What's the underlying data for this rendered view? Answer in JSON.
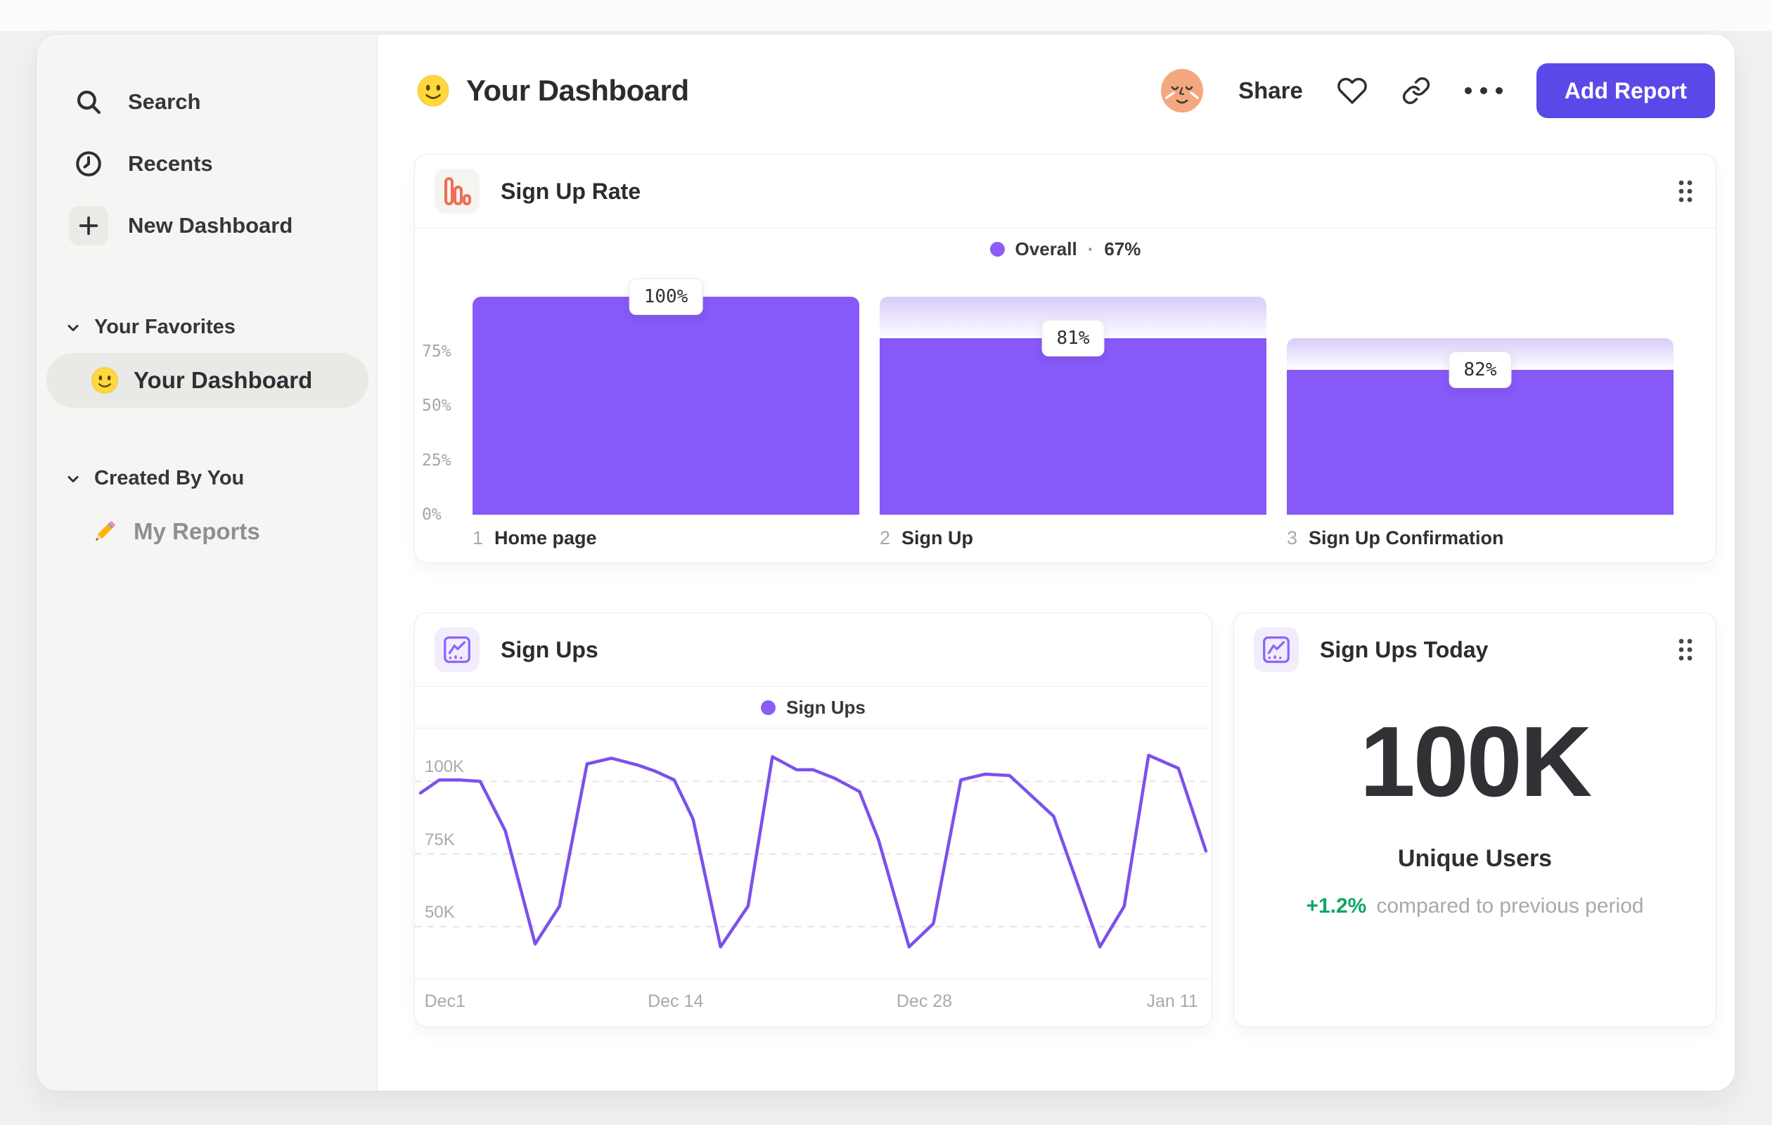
{
  "sidebar": {
    "nav": [
      {
        "icon": "search-icon",
        "label": "Search"
      },
      {
        "icon": "clock-icon",
        "label": "Recents"
      },
      {
        "icon": "plus-icon",
        "label": "New Dashboard"
      }
    ],
    "sections": [
      {
        "title": "Your Favorites",
        "items": [
          {
            "icon": "smiley-emoji",
            "label": "Your Dashboard",
            "selected": true
          }
        ]
      },
      {
        "title": "Created By You",
        "items": [
          {
            "icon": "pencil-emoji",
            "label": "My Reports",
            "selected": false
          }
        ]
      }
    ]
  },
  "header": {
    "title": "Your Dashboard",
    "share_label": "Share",
    "add_report_label": "Add Report"
  },
  "cards": {
    "funnel": {
      "title": "Sign Up Rate",
      "legend_label": "Overall",
      "legend_sep": "·",
      "legend_value": "67%"
    },
    "line": {
      "title": "Sign Ups",
      "legend_label": "Sign Ups"
    },
    "today": {
      "title": "Sign Ups Today",
      "value": "100K",
      "label": "Unique Users",
      "delta": "+1.2%",
      "delta_note": "compared to previous period"
    }
  },
  "colors": {
    "bar_purple": "#8759f8",
    "line_purple": "#7b51ec",
    "legend_dot": "#8b5cf6",
    "primary_button": "#5a49e8",
    "funnel_icon_orange": "#ef6e54",
    "delta_green": "#0ea765",
    "gridline": "#e3e3e1"
  },
  "chart_data": [
    {
      "type": "bar",
      "variant": "funnel",
      "title": "Sign Up Rate",
      "legend": "Overall · 67%",
      "overall_conversion_pct": 67,
      "categories": [
        "Home page",
        "Sign Up",
        "Sign Up Confirmation"
      ],
      "step_numbers": [
        "1",
        "2",
        "3"
      ],
      "step_conversion_labels": [
        "100%",
        "81%",
        "82%"
      ],
      "cumulative_pct": [
        100,
        81,
        66.4
      ],
      "prev_cumulative_pct": [
        100,
        100,
        81
      ],
      "yticks": [
        {
          "label": "75%",
          "value": 75
        },
        {
          "label": "50%",
          "value": 50
        },
        {
          "label": "25%",
          "value": 25
        },
        {
          "label": "0%",
          "value": 0
        }
      ],
      "ylim": [
        0,
        100
      ],
      "grid": false,
      "legend_position": "top-center"
    },
    {
      "type": "line",
      "title": "Sign Ups",
      "legend_position": "top-center",
      "xlabel": "",
      "ylabel": "",
      "ylim": [
        32,
        118
      ],
      "unit": "K users",
      "grid": "dashed-horizontal",
      "yticks": [
        {
          "label": "100K",
          "value": 100
        },
        {
          "label": "75K",
          "value": 75
        },
        {
          "label": "50K",
          "value": 50
        }
      ],
      "xticks": [
        {
          "label": "Dec1",
          "pos_pct": 0.5,
          "align": "left"
        },
        {
          "label": "Dec 14",
          "pos_pct": 32.5,
          "align": "center"
        },
        {
          "label": "Dec 28",
          "pos_pct": 64.2,
          "align": "center"
        },
        {
          "label": "Jan 11",
          "pos_pct": 95.8,
          "align": "center"
        }
      ],
      "series": [
        {
          "name": "Sign Ups",
          "points_pct_x_vs_thousands": [
            [
              0,
              96
            ],
            [
              2.4,
              100.5
            ],
            [
              4.9,
              100.5
            ],
            [
              7.6,
              100
            ],
            [
              10.8,
              83
            ],
            [
              14.6,
              44
            ],
            [
              17.7,
              57
            ],
            [
              21.2,
              106
            ],
            [
              24.3,
              108
            ],
            [
              27.8,
              105.5
            ],
            [
              29.9,
              103.5
            ],
            [
              32.3,
              100.5
            ],
            [
              34.7,
              87
            ],
            [
              38.2,
              43
            ],
            [
              41.7,
              57
            ],
            [
              44.8,
              108.5
            ],
            [
              47.9,
              104
            ],
            [
              50.0,
              104
            ],
            [
              52.8,
              101
            ],
            [
              55.9,
              96.5
            ],
            [
              58.3,
              80
            ],
            [
              62.2,
              43
            ],
            [
              65.3,
              51
            ],
            [
              68.8,
              100.5
            ],
            [
              71.9,
              102.5
            ],
            [
              75.0,
              102
            ],
            [
              80.6,
              88
            ],
            [
              86.5,
              43
            ],
            [
              89.6,
              57
            ],
            [
              92.7,
              109
            ],
            [
              96.5,
              104.5
            ],
            [
              100,
              76
            ]
          ]
        }
      ]
    }
  ]
}
